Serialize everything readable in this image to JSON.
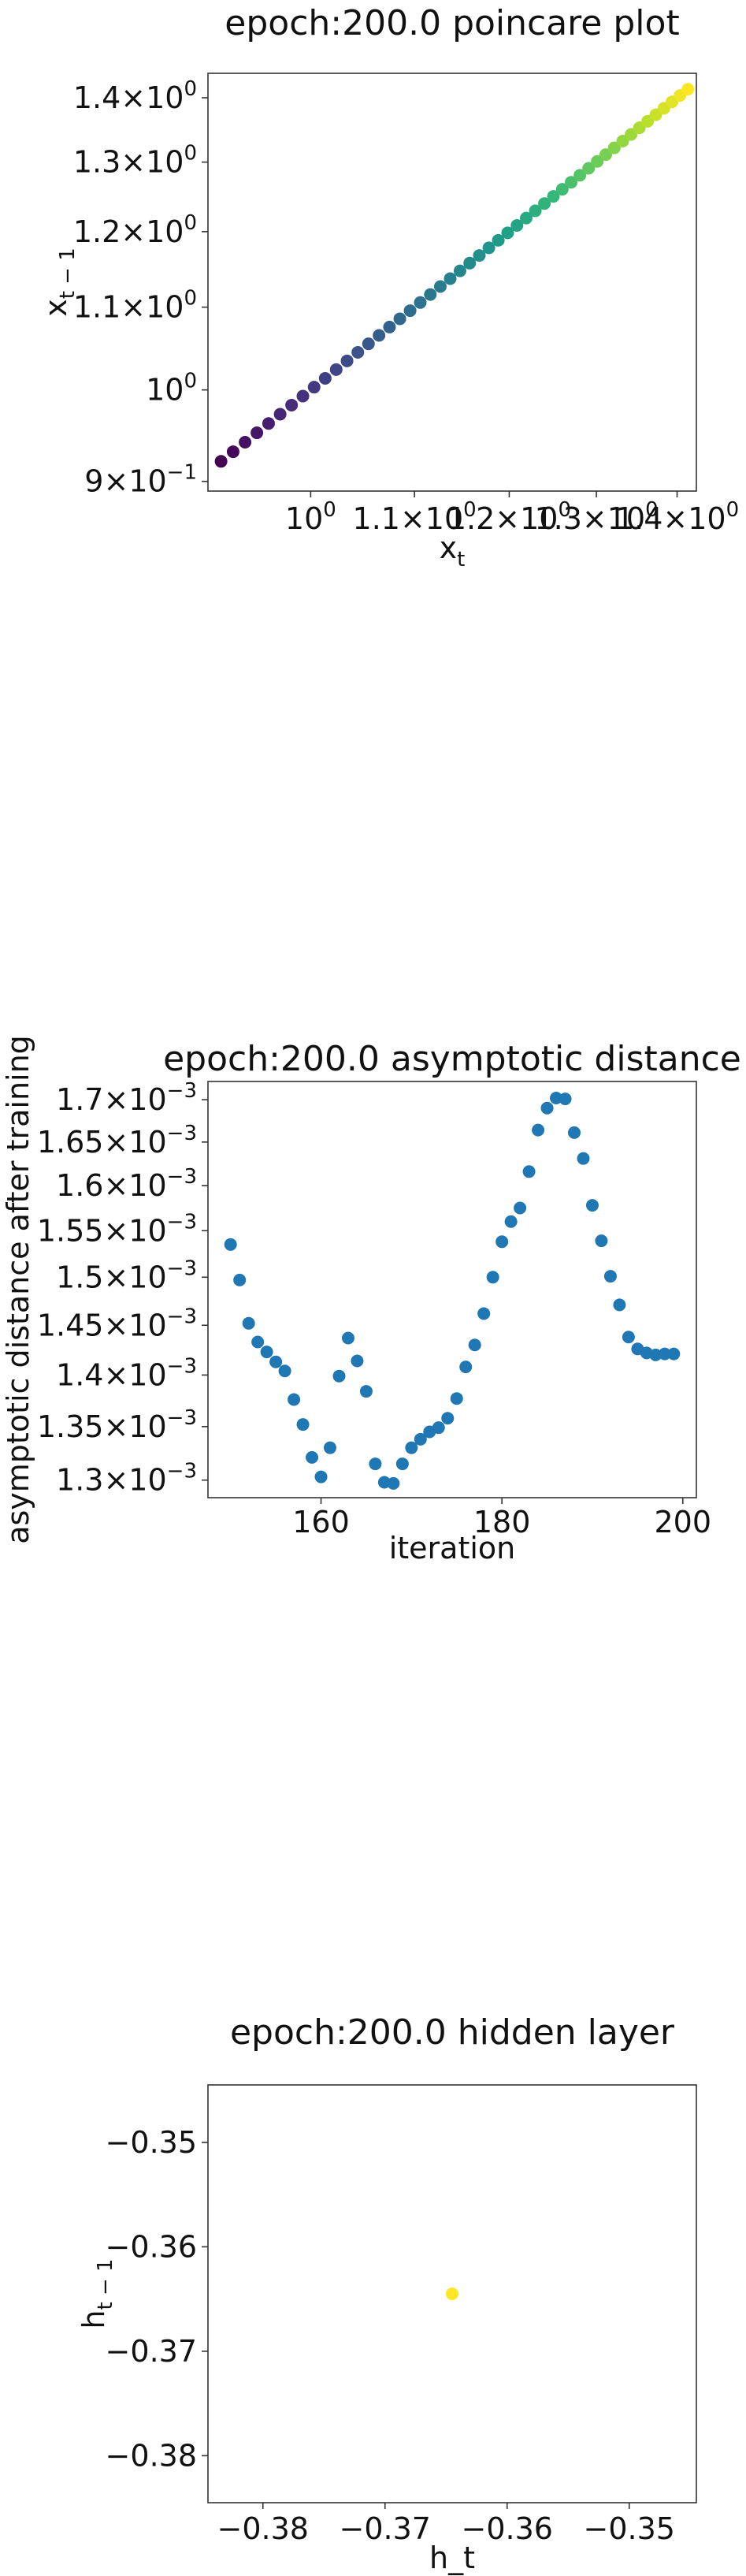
{
  "chart_data": [
    {
      "type": "scatter",
      "title": "epoch:200.0 poincare plot",
      "xlabel": "x_t",
      "ylabel": "x_{t-1}",
      "scale": "log",
      "xlim": [
        0.91,
        1.425
      ],
      "ylim": [
        0.89,
        1.44
      ],
      "x_tick_labels": [
        "10^0",
        "1.1×10^0",
        "1.2×10^0",
        "1.3×10^0",
        "1.4×10^0"
      ],
      "y_tick_labels": [
        "9×10^-1",
        "10^0",
        "1.1×10^0",
        "1.2×10^0",
        "1.3×10^0",
        "1.4×10^0"
      ],
      "colormap": "viridis",
      "n_points": 49,
      "x_range_points": [
        0.921,
        1.414
      ],
      "grid": false
    },
    {
      "type": "scatter",
      "title": "epoch:200.0 asymptotic distance",
      "xlabel": "iteration",
      "ylabel": "asymptotic distance after training",
      "scale_y": "log",
      "xlim": [
        147.5,
        201.5
      ],
      "ylim": [
        0.001284,
        0.001722
      ],
      "x_ticks": [
        160,
        180,
        200
      ],
      "y_tick_labels": [
        "1.3×10^-3",
        "1.35×10^-3",
        "1.4×10^-3",
        "1.45×10^-3",
        "1.5×10^-3",
        "1.55×10^-3",
        "1.6×10^-3",
        "1.65×10^-3",
        "1.7×10^-3"
      ],
      "color": "#1f77b4",
      "x": [
        150,
        151,
        152,
        153,
        154,
        155,
        156,
        157,
        158,
        159,
        160,
        161,
        162,
        163,
        164,
        165,
        166,
        167,
        168,
        169,
        170,
        171,
        172,
        173,
        174,
        175,
        176,
        177,
        178,
        179,
        180,
        181,
        182,
        183,
        184,
        185,
        186,
        187,
        188,
        189,
        190,
        191,
        192,
        193,
        194,
        195,
        196,
        197,
        198,
        199
      ],
      "y": [
        0.001535,
        0.001497,
        0.001452,
        0.001433,
        0.001423,
        0.001413,
        0.001404,
        0.001376,
        0.001352,
        0.001321,
        0.001303,
        0.00133,
        0.001399,
        0.001437,
        0.001414,
        0.001384,
        0.001315,
        0.001298,
        0.001297,
        0.001315,
        0.00133,
        0.001338,
        0.001345,
        0.001349,
        0.001358,
        0.001377,
        0.001408,
        0.00143,
        0.001462,
        0.0015,
        0.001538,
        0.00156,
        0.001575,
        0.001616,
        0.001664,
        0.00169,
        0.001702,
        0.001701,
        0.001661,
        0.001631,
        0.001578,
        0.001539,
        0.001501,
        0.001471,
        0.001438,
        0.001426,
        0.001422,
        0.00142,
        0.001421,
        0.001421
      ],
      "grid": false
    },
    {
      "type": "scatter",
      "title": "epoch:200.0 hidden layer",
      "xlabel": "h_t",
      "ylabel": "h_{t-1}",
      "xlim": [
        -0.3845,
        -0.3445
      ],
      "ylim": [
        -0.3845,
        -0.3445
      ],
      "x_ticks": [
        -0.38,
        -0.37,
        -0.36,
        -0.35
      ],
      "y_ticks": [
        -0.35,
        -0.36,
        -0.37,
        -0.38
      ],
      "x_tick_labels": [
        "−0.38",
        "−0.37",
        "−0.36",
        "−0.35"
      ],
      "y_tick_labels": [
        "−0.35",
        "−0.36",
        "−0.37",
        "−0.38"
      ],
      "points": [
        {
          "x": -0.3645,
          "y": -0.3645
        }
      ],
      "point_color": "#fde725",
      "grid": false
    }
  ]
}
